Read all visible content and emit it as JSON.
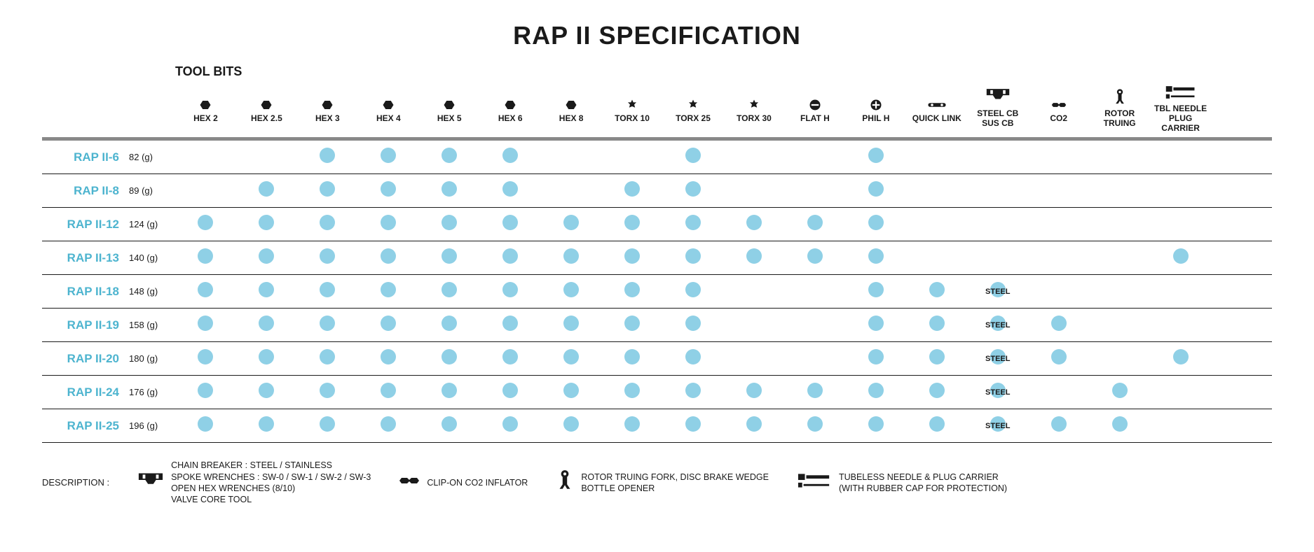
{
  "title": "RAP II SPECIFICATION",
  "tool_bits_label": "TOOL BITS",
  "colors": {
    "dot": "#8fd0e6",
    "model": "#4db4cf",
    "text": "#1a1a1a",
    "header_rule": "#888888",
    "row_rule": "#1a1a1a",
    "background": "#ffffff"
  },
  "columns": [
    {
      "key": "hex2",
      "label": "HEX 2",
      "icon": "hex"
    },
    {
      "key": "hex25",
      "label": "HEX 2.5",
      "icon": "hex"
    },
    {
      "key": "hex3",
      "label": "HEX 3",
      "icon": "hex"
    },
    {
      "key": "hex4",
      "label": "HEX 4",
      "icon": "hex"
    },
    {
      "key": "hex5",
      "label": "HEX 5",
      "icon": "hex"
    },
    {
      "key": "hex6",
      "label": "HEX 6",
      "icon": "hex"
    },
    {
      "key": "hex8",
      "label": "HEX 8",
      "icon": "hex"
    },
    {
      "key": "torx10",
      "label": "TORX 10",
      "icon": "torx"
    },
    {
      "key": "torx25",
      "label": "TORX 25",
      "icon": "torx"
    },
    {
      "key": "torx30",
      "label": "TORX 30",
      "icon": "torx"
    },
    {
      "key": "flath",
      "label": "FLAT H",
      "icon": "flat"
    },
    {
      "key": "philh",
      "label": "PHIL H",
      "icon": "phil"
    },
    {
      "key": "qlink",
      "label": "QUICK LINK",
      "icon": "qlink"
    },
    {
      "key": "cb",
      "label": "STEEL CB\nSUS CB",
      "icon": "cb"
    },
    {
      "key": "co2",
      "label": "CO2",
      "icon": "co2"
    },
    {
      "key": "rotor",
      "label": "ROTOR\nTRUING",
      "icon": "rotor"
    },
    {
      "key": "tbl",
      "label": "TBL NEEDLE\nPLUG CARRIER",
      "icon": "tbl"
    }
  ],
  "rows": [
    {
      "model": "RAP II-6",
      "weight": "82 (g)",
      "cells": {
        "hex3": 1,
        "hex4": 1,
        "hex5": 1,
        "hex6": 1,
        "torx25": 1,
        "philh": 1
      }
    },
    {
      "model": "RAP II-8",
      "weight": "89 (g)",
      "cells": {
        "hex25": 1,
        "hex3": 1,
        "hex4": 1,
        "hex5": 1,
        "hex6": 1,
        "torx10": 1,
        "torx25": 1,
        "philh": 1
      }
    },
    {
      "model": "RAP II-12",
      "weight": "124 (g)",
      "cells": {
        "hex2": 1,
        "hex25": 1,
        "hex3": 1,
        "hex4": 1,
        "hex5": 1,
        "hex6": 1,
        "hex8": 1,
        "torx10": 1,
        "torx25": 1,
        "torx30": 1,
        "flath": 1,
        "philh": 1
      }
    },
    {
      "model": "RAP II-13",
      "weight": "140 (g)",
      "cells": {
        "hex2": 1,
        "hex25": 1,
        "hex3": 1,
        "hex4": 1,
        "hex5": 1,
        "hex6": 1,
        "hex8": 1,
        "torx10": 1,
        "torx25": 1,
        "torx30": 1,
        "flath": 1,
        "philh": 1,
        "tbl": 1
      }
    },
    {
      "model": "RAP II-18",
      "weight": "148 (g)",
      "cells": {
        "hex2": 1,
        "hex25": 1,
        "hex3": 1,
        "hex4": 1,
        "hex5": 1,
        "hex6": 1,
        "hex8": 1,
        "torx10": 1,
        "torx25": 1,
        "philh": 1,
        "qlink": 1,
        "cb": "STEEL"
      }
    },
    {
      "model": "RAP II-19",
      "weight": "158 (g)",
      "cells": {
        "hex2": 1,
        "hex25": 1,
        "hex3": 1,
        "hex4": 1,
        "hex5": 1,
        "hex6": 1,
        "hex8": 1,
        "torx10": 1,
        "torx25": 1,
        "philh": 1,
        "qlink": 1,
        "cb": "STEEL",
        "co2": 1
      }
    },
    {
      "model": "RAP II-20",
      "weight": "180 (g)",
      "cells": {
        "hex2": 1,
        "hex25": 1,
        "hex3": 1,
        "hex4": 1,
        "hex5": 1,
        "hex6": 1,
        "hex8": 1,
        "torx10": 1,
        "torx25": 1,
        "philh": 1,
        "qlink": 1,
        "cb": "STEEL",
        "co2": 1,
        "tbl": 1
      }
    },
    {
      "model": "RAP II-24",
      "weight": "176 (g)",
      "cells": {
        "hex2": 1,
        "hex25": 1,
        "hex3": 1,
        "hex4": 1,
        "hex5": 1,
        "hex6": 1,
        "hex8": 1,
        "torx10": 1,
        "torx25": 1,
        "torx30": 1,
        "flath": 1,
        "philh": 1,
        "qlink": 1,
        "cb": "STEEL",
        "rotor": 1
      }
    },
    {
      "model": "RAP II-25",
      "weight": "196 (g)",
      "cells": {
        "hex2": 1,
        "hex25": 1,
        "hex3": 1,
        "hex4": 1,
        "hex5": 1,
        "hex6": 1,
        "hex8": 1,
        "torx10": 1,
        "torx25": 1,
        "torx30": 1,
        "flath": 1,
        "philh": 1,
        "qlink": 1,
        "cb": "STEEL",
        "co2": 1,
        "rotor": 1
      }
    }
  ],
  "legend": {
    "label": "DESCRIPTION :",
    "items": [
      {
        "icon": "cb",
        "text": "CHAIN BREAKER : STEEL / STAINLESS\nSPOKE WRENCHES : SW-0 / SW-1 / SW-2 / SW-3\nOPEN HEX WRENCHES (8/10)\nVALVE CORE TOOL"
      },
      {
        "icon": "co2",
        "text": "CLIP-ON CO2 INFLATOR"
      },
      {
        "icon": "rotor",
        "text": "ROTOR TRUING FORK, DISC BRAKE WEDGE\nBOTTLE OPENER"
      },
      {
        "icon": "tbl",
        "text": "TUBELESS NEEDLE & PLUG CARRIER\n(WITH RUBBER CAP FOR PROTECTION)"
      }
    ]
  }
}
